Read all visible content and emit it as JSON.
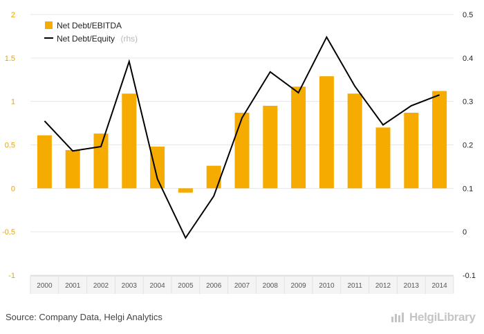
{
  "chart_data": {
    "type": "bar",
    "categories": [
      "2000",
      "2001",
      "2002",
      "2003",
      "2004",
      "2005",
      "2006",
      "2007",
      "2008",
      "2009",
      "2010",
      "2011",
      "2012",
      "2013",
      "2014"
    ],
    "series": [
      {
        "name": "Net Debt/EBITDA",
        "type": "bar",
        "axis": "left",
        "color": "#f5ab00",
        "values": [
          0.61,
          0.44,
          0.63,
          1.09,
          0.48,
          -0.05,
          0.26,
          0.87,
          0.95,
          1.17,
          1.29,
          1.09,
          0.7,
          0.87,
          1.12
        ]
      },
      {
        "name": "Net Debt/Equity",
        "name_suffix": "(rhs)",
        "type": "line",
        "axis": "right",
        "color": "#000000",
        "values": [
          0.255,
          0.186,
          0.196,
          0.392,
          0.122,
          -0.014,
          0.082,
          0.262,
          0.368,
          0.32,
          0.448,
          0.335,
          0.246,
          0.29,
          0.315
        ]
      }
    ],
    "y_left": {
      "lim": [
        -1,
        2
      ],
      "ticks": [
        -1,
        -0.5,
        0,
        0.5,
        1,
        1.5,
        2
      ],
      "tick_labels": [
        "-1",
        "-0.5",
        "0",
        "0.5",
        "1",
        "1.5",
        "2"
      ]
    },
    "y_right": {
      "lim": [
        -0.1,
        0.5
      ],
      "ticks": [
        -0.1,
        0,
        0.1,
        0.2,
        0.3,
        0.4,
        0.5
      ],
      "tick_labels": [
        "-0.1",
        "0",
        "0.1",
        "0.2",
        "0.3",
        "0.4",
        "0.5"
      ]
    },
    "grid": true,
    "legend": "top-left"
  },
  "footer": {
    "source": "Source: Company Data, Helgi Analytics",
    "brand": "HelgiLibrary"
  }
}
